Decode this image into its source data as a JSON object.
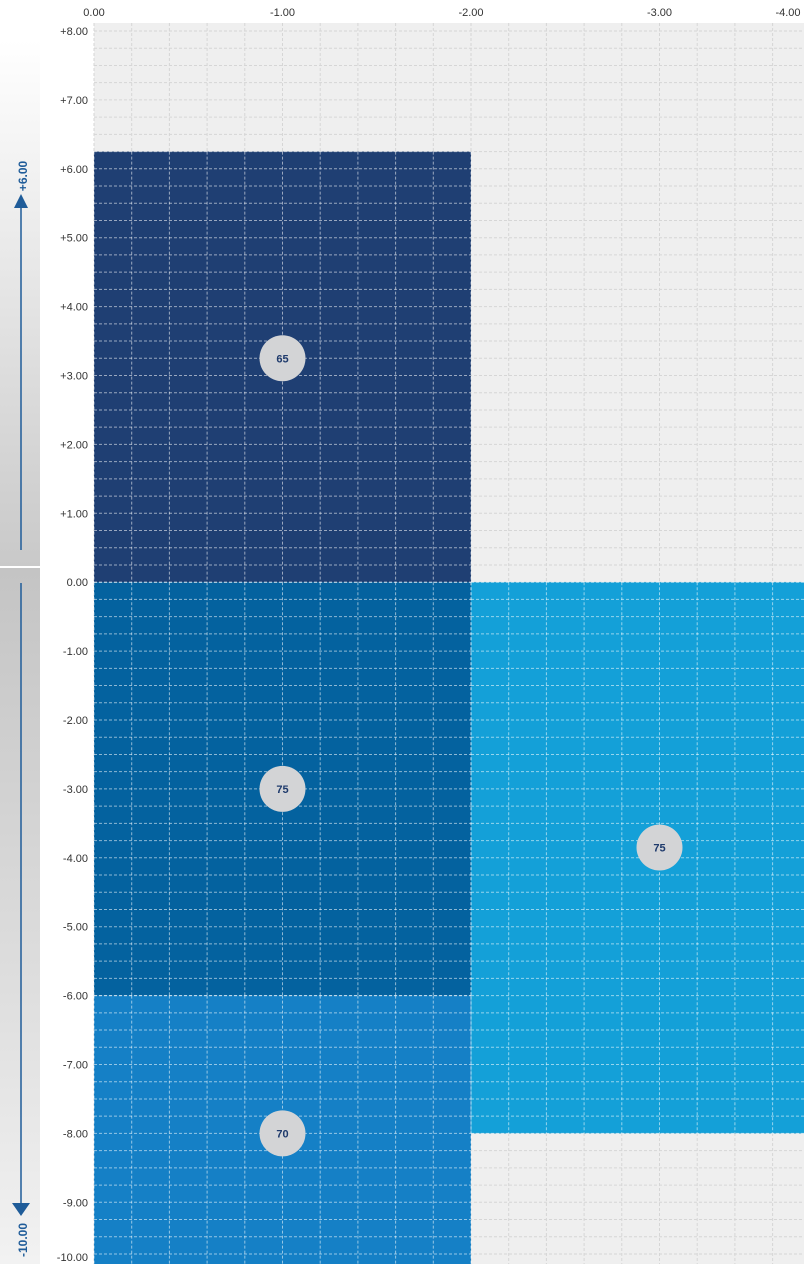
{
  "chart_data": {
    "type": "heatmap",
    "x_axis": {
      "range": [
        0.0,
        -4.0
      ],
      "ticks": [
        "0.00",
        "-1.00",
        "-2.00",
        "-3.00",
        "-4.00"
      ]
    },
    "y_axis": {
      "range": [
        8.0,
        -10.0
      ],
      "ticks": [
        "+8.00",
        "+7.00",
        "+6.00",
        "+5.00",
        "+4.00",
        "+3.00",
        "+2.00",
        "+1.00",
        "0.00",
        "-1.00",
        "-2.00",
        "-3.00",
        "-4.00",
        "-5.00",
        "-6.00",
        "-7.00",
        "-8.00",
        "-9.00",
        "-10.00"
      ]
    },
    "grid": true,
    "regions": [
      {
        "x0": 0.0,
        "x1": -2.0,
        "y0": 6.25,
        "y1": 0.0,
        "color": "#1f3f73",
        "label": "65",
        "label_x": -1.0,
        "label_y": 3.25
      },
      {
        "x0": 0.0,
        "x1": -2.0,
        "y0": 0.0,
        "y1": -6.0,
        "color": "#04629f",
        "label": "75",
        "label_x": -1.0,
        "label_y": -3.0
      },
      {
        "x0": 0.0,
        "x1": -2.0,
        "y0": -6.0,
        "y1": -10.0,
        "color": "#1580c6",
        "label": "70",
        "label_x": -1.0,
        "label_y": -8.0
      },
      {
        "x0": -2.0,
        "x1": -4.0,
        "y0": 0.0,
        "y1": -8.0,
        "color": "#14a0d8",
        "label": "75",
        "label_x": -3.0,
        "label_y": -3.85
      }
    ],
    "side_scale": {
      "top_label": "+6.00",
      "bottom_label": "-10.00"
    }
  }
}
